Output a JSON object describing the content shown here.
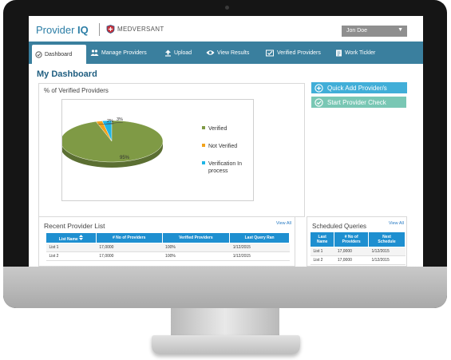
{
  "header": {
    "brand_prefix": "Provider ",
    "brand_suffix": "IQ",
    "partner": "MEDVERSANT",
    "user": "Jon Doe",
    "user_caret": "▼"
  },
  "nav": {
    "items": [
      {
        "label": "Dashboard",
        "icon": "dashboard-icon"
      },
      {
        "label": "Manage Providers",
        "icon": "people-icon"
      },
      {
        "label": "Upload",
        "icon": "upload-icon"
      },
      {
        "label": "View Results",
        "icon": "eye-icon"
      },
      {
        "label": "Verified Providers",
        "icon": "verified-icon"
      },
      {
        "label": "Work Tickler",
        "icon": "work-tickler-icon"
      }
    ]
  },
  "page": {
    "title": "My Dashboard"
  },
  "actions": {
    "quick_add": "Quick Add Provider/s",
    "start_check": "Start Provider Check"
  },
  "chart_panel": {
    "title": "% of Verified Providers"
  },
  "chart_data": {
    "type": "pie",
    "categories": [
      "Verified",
      "Not Verified",
      "Verification In process"
    ],
    "legend_lines": [
      [
        "Verified"
      ],
      [
        "Not Verified"
      ],
      [
        "Verification In",
        "process"
      ]
    ],
    "values": [
      95,
      2,
      3
    ],
    "data_labels": [
      "95%",
      "2%",
      "3%"
    ],
    "colors": [
      "#7f9a45",
      "#f2a21b",
      "#1fb5e6"
    ],
    "legend": "right"
  },
  "recent": {
    "title": "Recent Provider List",
    "view_all": "View All",
    "columns": [
      "List Name",
      "# No of Providers",
      "Verified Providers",
      "Last Query Ran"
    ],
    "rows": [
      [
        "List 1",
        "17,0000",
        "100%",
        "1/12/2015"
      ],
      [
        "List 2",
        "17,0000",
        "100%",
        "1/12/2015"
      ]
    ]
  },
  "scheduled": {
    "title": "Scheduled Queries",
    "view_all": "View All",
    "columns": [
      [
        "Last",
        "Name"
      ],
      [
        "# No of",
        "Providers"
      ],
      [
        "Next",
        "Schedule"
      ]
    ],
    "rows": [
      [
        "List 1",
        "17,0000",
        "1/12/2015"
      ],
      [
        "List 2",
        "17,0000",
        "1/12/2015"
      ]
    ]
  }
}
